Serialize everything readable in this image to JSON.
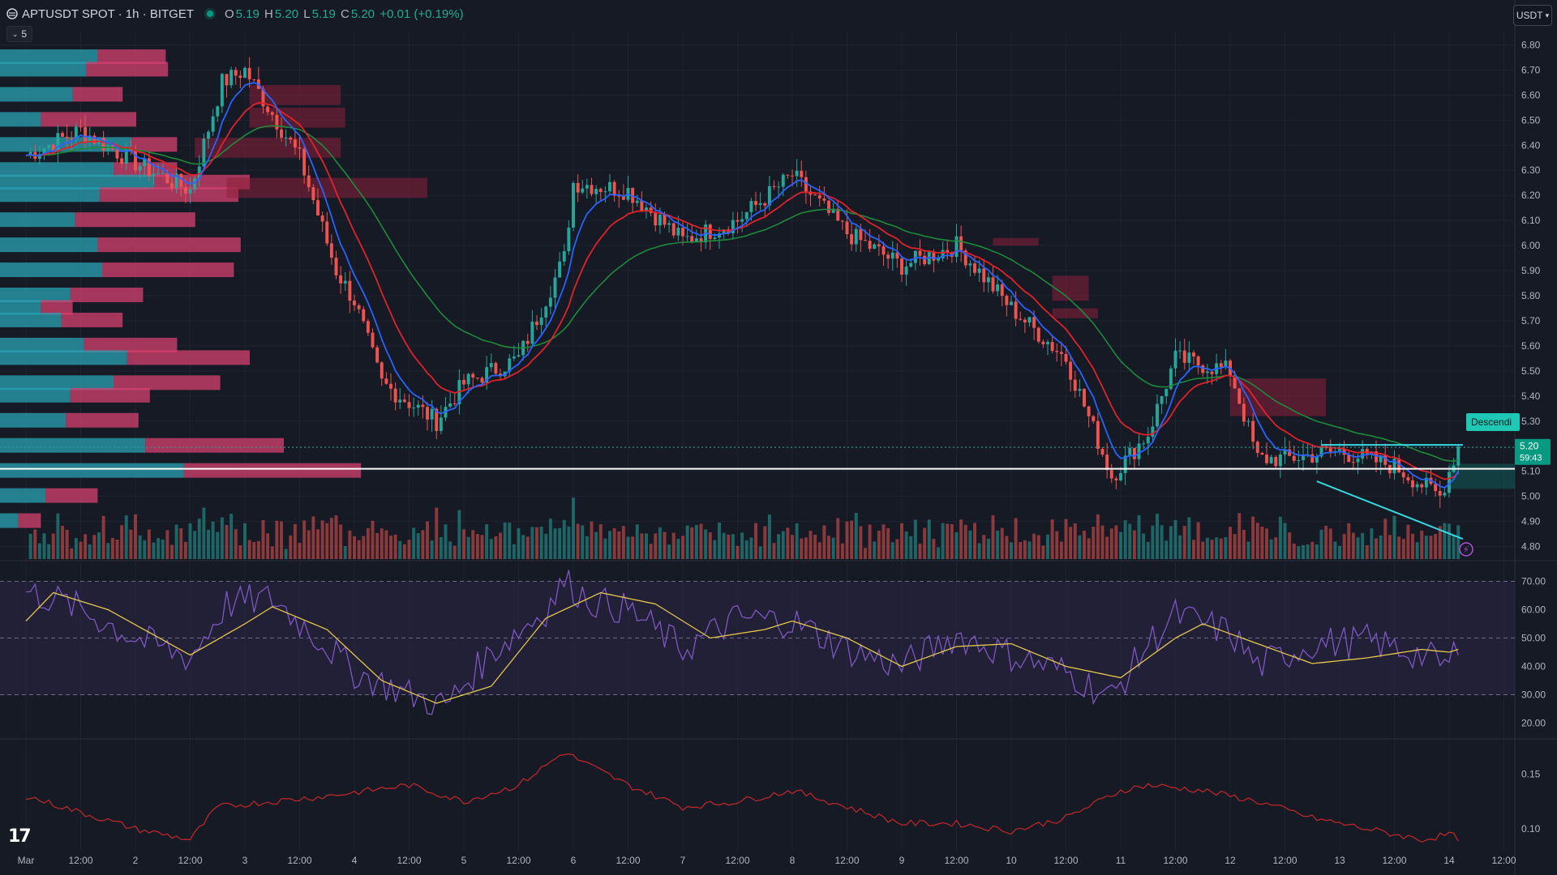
{
  "header": {
    "symbol": "APTUSDT SPOT · 1h · BITGET",
    "o_label": "O",
    "o_value": "5.19",
    "h_label": "H",
    "h_value": "5.20",
    "l_label": "L",
    "l_value": "5.19",
    "c_label": "C",
    "c_value": "5.20",
    "change": "+0.01 (+0.19%)"
  },
  "controls": {
    "collapse_label": "5",
    "currency_label": "USDT"
  },
  "price_axis": {
    "labels": [
      "6.80",
      "6.70",
      "6.60",
      "6.50",
      "6.40",
      "6.30",
      "6.20",
      "6.10",
      "6.00",
      "5.90",
      "5.80",
      "5.70",
      "5.60",
      "5.50",
      "5.40",
      "5.30",
      "5.20",
      "5.10",
      "5.00",
      "4.90",
      "4.80"
    ],
    "last_price": "5.20",
    "countdown": "59:43"
  },
  "rsi_axis": {
    "labels": [
      "70.00",
      "60.00",
      "50.00",
      "40.00",
      "30.00",
      "20.00"
    ]
  },
  "third_axis": {
    "labels": [
      "0.15",
      "0.10"
    ]
  },
  "time_axis": {
    "labels": [
      "Mar",
      "12:00",
      "2",
      "12:00",
      "3",
      "12:00",
      "4",
      "12:00",
      "5",
      "12:00",
      "6",
      "12:00",
      "7",
      "12:00",
      "8",
      "12:00",
      "9",
      "12:00",
      "10",
      "12:00",
      "11",
      "12:00",
      "12",
      "12:00",
      "13",
      "12:00",
      "14",
      "12:00"
    ]
  },
  "annotation": {
    "pattern_label": "Descendi"
  },
  "colors": {
    "background": "#161a25",
    "up": "#26a69a",
    "down": "#ef5350",
    "ma_fast": "#2962ff",
    "ma_mid": "#e0222a",
    "ma_slow": "#1f8a3a",
    "rsi": "#7e57c2",
    "rsi_ma": "#e6c84b",
    "vp_up": "#2aa3b3",
    "vp_down": "#d6416f",
    "trendline": "#37d7e0"
  },
  "chart_data": {
    "type": "candlestick",
    "symbol": "APTUSDT",
    "timeframe": "1h",
    "ylim": [
      4.75,
      6.85
    ],
    "x_range": [
      "Mar 1 00:00",
      "Mar 14 12:00"
    ],
    "close_path": [
      [
        "Mar 1 00:00",
        6.36
      ],
      [
        "Mar 1 12:00",
        6.46
      ],
      [
        "Mar 2 00:00",
        6.33
      ],
      [
        "Mar 2 12:00",
        6.22
      ],
      [
        "Mar 2 19:00",
        6.65
      ],
      [
        "Mar 3 00:00",
        6.7
      ],
      [
        "Mar 3 12:00",
        6.35
      ],
      [
        "Mar 3 20:00",
        5.9
      ],
      [
        "Mar 4 00:00",
        5.78
      ],
      [
        "Mar 4 06:00",
        5.45
      ],
      [
        "Mar 4 18:00",
        5.3
      ],
      [
        "Mar 5 00:00",
        5.45
      ],
      [
        "Mar 5 12:00",
        5.55
      ],
      [
        "Mar 5 22:00",
        5.95
      ],
      [
        "Mar 6 00:00",
        6.25
      ],
      [
        "Mar 6 12:00",
        6.22
      ],
      [
        "Mar 7 00:00",
        6.02
      ],
      [
        "Mar 7 12:00",
        6.1
      ],
      [
        "Mar 8 00:00",
        6.28
      ],
      [
        "Mar 8 12:00",
        6.05
      ],
      [
        "Mar 9 00:00",
        5.92
      ],
      [
        "Mar 9 12:00",
        6.0
      ],
      [
        "Mar 10 00:00",
        5.75
      ],
      [
        "Mar 10 12:00",
        5.55
      ],
      [
        "Mar 10 22:00",
        5.08
      ],
      [
        "Mar 11 06:00",
        5.25
      ],
      [
        "Mar 11 12:00",
        5.55
      ],
      [
        "Mar 12 00:00",
        5.5
      ],
      [
        "Mar 12 06:00",
        5.15
      ],
      [
        "Mar 12 12:00",
        5.15
      ],
      [
        "Mar 13 00:00",
        5.18
      ],
      [
        "Mar 13 12:00",
        5.12
      ],
      [
        "Mar 13 22:00",
        5.0
      ],
      [
        "Mar 14 00:00",
        5.1
      ],
      [
        "Mar 14 02:00",
        5.2
      ]
    ],
    "volume_profile": [
      {
        "price": 6.75,
        "up": 0.43,
        "down": 0.3
      },
      {
        "price": 6.7,
        "up": 0.38,
        "down": 0.36
      },
      {
        "price": 6.6,
        "up": 0.32,
        "down": 0.22
      },
      {
        "price": 6.5,
        "up": 0.18,
        "down": 0.42
      },
      {
        "price": 6.4,
        "up": 0.58,
        "down": 0.2
      },
      {
        "price": 6.3,
        "up": 0.5,
        "down": 0.28
      },
      {
        "price": 6.25,
        "up": 0.68,
        "down": 0.42
      },
      {
        "price": 6.2,
        "up": 0.44,
        "down": 0.61
      },
      {
        "price": 6.1,
        "up": 0.33,
        "down": 0.53
      },
      {
        "price": 6.0,
        "up": 0.43,
        "down": 0.63
      },
      {
        "price": 5.9,
        "up": 0.45,
        "down": 0.58
      },
      {
        "price": 5.8,
        "up": 0.31,
        "down": 0.32
      },
      {
        "price": 5.75,
        "up": 0.18,
        "down": 0.14
      },
      {
        "price": 5.7,
        "up": 0.27,
        "down": 0.27
      },
      {
        "price": 5.6,
        "up": 0.37,
        "down": 0.41
      },
      {
        "price": 5.55,
        "up": 0.56,
        "down": 0.54
      },
      {
        "price": 5.45,
        "up": 0.5,
        "down": 0.47
      },
      {
        "price": 5.4,
        "up": 0.31,
        "down": 0.35
      },
      {
        "price": 5.3,
        "up": 0.29,
        "down": 0.32
      },
      {
        "price": 5.2,
        "up": 0.64,
        "down": 0.61
      },
      {
        "price": 5.1,
        "up": 0.81,
        "down": 0.78
      },
      {
        "price": 5.0,
        "up": 0.2,
        "down": 0.23
      },
      {
        "price": 4.9,
        "up": 0.08,
        "down": 0.1
      }
    ],
    "horizontal_lines": [
      {
        "price": 5.11,
        "color": "#ffffff"
      },
      {
        "price": 5.195,
        "color": "#26a69a",
        "style": "dotted"
      }
    ],
    "supply_zones": [
      {
        "from": "Mar 3 01:00",
        "to": "Mar 3 21:00",
        "low": 6.56,
        "high": 6.64
      },
      {
        "from": "Mar 3 01:00",
        "to": "Mar 3 22:00",
        "low": 6.47,
        "high": 6.55
      },
      {
        "from": "Mar 2 13:00",
        "to": "Mar 3 21:00",
        "low": 6.35,
        "high": 6.43
      },
      {
        "from": "Mar 2 20:00",
        "to": "Mar 4 16:00",
        "low": 6.19,
        "high": 6.27
      },
      {
        "from": "Mar 9 20:00",
        "to": "Mar 10 06:00",
        "low": 6.0,
        "high": 6.03
      },
      {
        "from": "Mar 10 09:00",
        "to": "Mar 10 17:00",
        "low": 5.78,
        "high": 5.88
      },
      {
        "from": "Mar 10 09:00",
        "to": "Mar 10 19:00",
        "low": 5.71,
        "high": 5.75
      },
      {
        "from": "Mar 12 00:00",
        "to": "Mar 12 21:00",
        "low": 5.32,
        "high": 5.47
      }
    ],
    "demand_zone": {
      "from": "Mar 14 00:00",
      "to": "Mar 14 08:00",
      "low": 5.03,
      "high": 5.13
    },
    "trendlines": [
      {
        "from": [
          "Mar 12 20:00",
          5.205
        ],
        "to": [
          "Mar 14 03:00",
          5.205
        ]
      },
      {
        "from": [
          "Mar 12 19:00",
          5.06
        ],
        "to": [
          "Mar 14 03:00",
          4.83
        ]
      }
    ],
    "rsi": {
      "ylim": [
        15,
        75
      ],
      "levels": [
        70,
        50,
        30
      ],
      "path": [
        [
          "Mar 1 00:00",
          66
        ],
        [
          "Mar 1 06:00",
          64
        ],
        [
          "Mar 1 12:00",
          60
        ],
        [
          "Mar 2 00:00",
          50
        ],
        [
          "Mar 2 12:00",
          43
        ],
        [
          "Mar 2 20:00",
          62
        ],
        [
          "Mar 3 06:00",
          64
        ],
        [
          "Mar 3 16:00",
          50
        ],
        [
          "Mar 4 00:00",
          38
        ],
        [
          "Mar 4 12:00",
          30
        ],
        [
          "Mar 4 20:00",
          26
        ],
        [
          "Mar 5 06:00",
          45
        ],
        [
          "Mar 5 18:00",
          60
        ],
        [
          "Mar 5 22:00",
          70
        ],
        [
          "Mar 6 04:00",
          63
        ],
        [
          "Mar 6 12:00",
          60
        ],
        [
          "Mar 7 00:00",
          46
        ],
        [
          "Mar 7 12:00",
          57
        ],
        [
          "Mar 8 00:00",
          56
        ],
        [
          "Mar 8 12:00",
          46
        ],
        [
          "Mar 9 00:00",
          40
        ],
        [
          "Mar 9 12:00",
          51
        ],
        [
          "Mar 10 00:00",
          44
        ],
        [
          "Mar 10 12:00",
          38
        ],
        [
          "Mar 10 22:00",
          29
        ],
        [
          "Mar 11 06:00",
          48
        ],
        [
          "Mar 11 12:00",
          58
        ],
        [
          "Mar 12 00:00",
          52
        ],
        [
          "Mar 12 06:00",
          40
        ],
        [
          "Mar 12 18:00",
          48
        ],
        [
          "Mar 13 06:00",
          49
        ],
        [
          "Mar 13 18:00",
          44
        ],
        [
          "Mar 14 00:00",
          40
        ],
        [
          "Mar 14 04:00",
          58
        ]
      ],
      "ma_path": [
        [
          "Mar 1 00:00",
          56
        ],
        [
          "Mar 1 06:00",
          66
        ],
        [
          "Mar 1 18:00",
          60
        ],
        [
          "Mar 2 12:00",
          44
        ],
        [
          "Mar 3 00:00",
          55
        ],
        [
          "Mar 3 06:00",
          61
        ],
        [
          "Mar 3 18:00",
          53
        ],
        [
          "Mar 4 06:00",
          35
        ],
        [
          "Mar 4 18:00",
          27
        ],
        [
          "Mar 5 06:00",
          33
        ],
        [
          "Mar 5 18:00",
          57
        ],
        [
          "Mar 6 06:00",
          66
        ],
        [
          "Mar 6 18:00",
          62
        ],
        [
          "Mar 7 06:00",
          50
        ],
        [
          "Mar 7 18:00",
          53
        ],
        [
          "Mar 8 00:00",
          56
        ],
        [
          "Mar 8 12:00",
          50
        ],
        [
          "Mar 9 00:00",
          40
        ],
        [
          "Mar 9 12:00",
          47
        ],
        [
          "Mar 10 00:00",
          48
        ],
        [
          "Mar 10 12:00",
          40
        ],
        [
          "Mar 11 00:00",
          36
        ],
        [
          "Mar 11 12:00",
          50
        ],
        [
          "Mar 11 18:00",
          55
        ],
        [
          "Mar 12 06:00",
          48
        ],
        [
          "Mar 12 18:00",
          41
        ],
        [
          "Mar 13 06:00",
          43
        ],
        [
          "Mar 13 18:00",
          46
        ],
        [
          "Mar 14 00:00",
          45
        ],
        [
          "Mar 14 04:00",
          47
        ]
      ]
    },
    "third_pane": {
      "ylim": [
        0.08,
        0.18
      ],
      "path": [
        [
          "Mar 1 00:00",
          0.13
        ],
        [
          "Mar 1 12:00",
          0.115
        ],
        [
          "Mar 2 00:00",
          0.1
        ],
        [
          "Mar 2 12:00",
          0.09
        ],
        [
          "Mar 2 18:00",
          0.12
        ],
        [
          "Mar 3 06:00",
          0.125
        ],
        [
          "Mar 3 18:00",
          0.13
        ],
        [
          "Mar 4 12:00",
          0.14
        ],
        [
          "Mar 5 00:00",
          0.125
        ],
        [
          "Mar 5 12:00",
          0.14
        ],
        [
          "Mar 5 22:00",
          0.17
        ],
        [
          "Mar 6 12:00",
          0.14
        ],
        [
          "Mar 7 00:00",
          0.12
        ],
        [
          "Mar 7 12:00",
          0.125
        ],
        [
          "Mar 8 00:00",
          0.135
        ],
        [
          "Mar 8 12:00",
          0.12
        ],
        [
          "Mar 9 00:00",
          0.105
        ],
        [
          "Mar 9 12:00",
          0.105
        ],
        [
          "Mar 10 00:00",
          0.098
        ],
        [
          "Mar 10 12:00",
          0.11
        ],
        [
          "Mar 11 00:00",
          0.135
        ],
        [
          "Mar 11 06:00",
          0.14
        ],
        [
          "Mar 11 18:00",
          0.135
        ],
        [
          "Mar 12 06:00",
          0.125
        ],
        [
          "Mar 12 18:00",
          0.11
        ],
        [
          "Mar 13 06:00",
          0.1
        ],
        [
          "Mar 13 18:00",
          0.09
        ],
        [
          "Mar 14 00:00",
          0.095
        ],
        [
          "Mar 14 04:00",
          0.088
        ]
      ]
    }
  }
}
